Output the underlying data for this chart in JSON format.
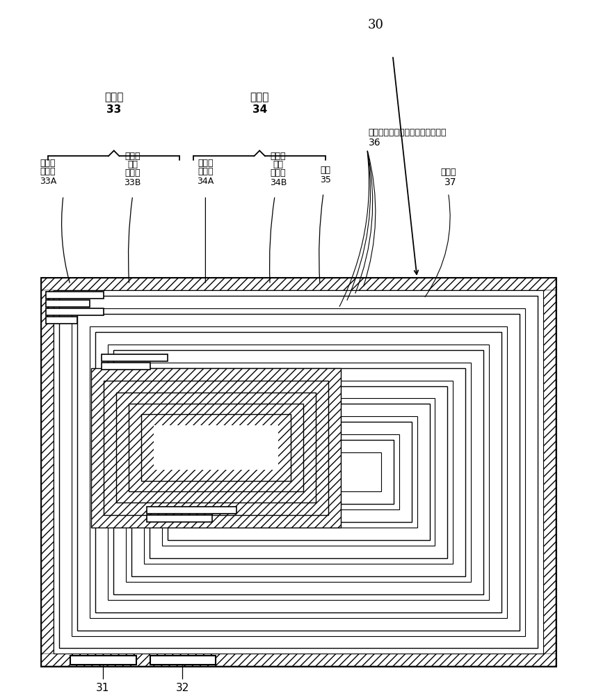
{
  "bg_color": "#ffffff",
  "label_30": "30",
  "label_31": "31",
  "label_32": "32",
  "label_33": "33",
  "label_33A": "33A",
  "label_33B": "33B",
  "label_34": "34",
  "label_34A": "34A",
  "label_34B": "34B",
  "label_35": "35",
  "label_36": "36",
  "label_37": "37",
  "text_33_top": "正电极",
  "text_34_top": "负电极",
  "text_33A_l1": "正电极",
  "text_33A_l2": "集电器",
  "text_33B_l1": "正电极",
  "text_33B_l2": "活性",
  "text_33B_l3": "材料层",
  "text_34A_l1": "负电极",
  "text_34A_l2": "集电器",
  "text_34B_l1": "负电极",
  "text_34B_l2": "活性",
  "text_34B_l3": "材料层",
  "text_35": "隔板",
  "text_36": "非水电解质（包含颗粒的络缘部）",
  "text_37": "保护带",
  "line_color": "#000000",
  "font_size_large": 13,
  "font_size_medium": 11,
  "font_size_small": 9
}
